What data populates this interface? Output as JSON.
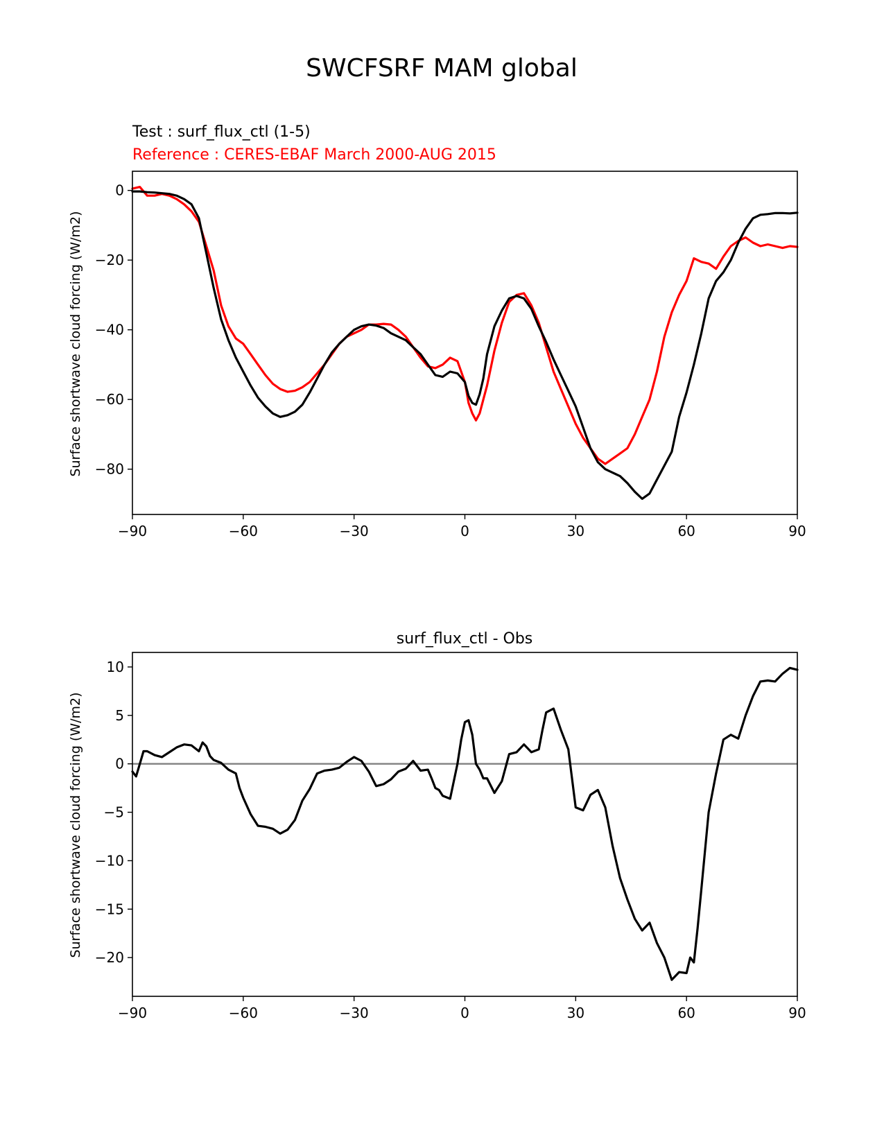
{
  "figure": {
    "title": "SWCFSRF MAM global"
  },
  "chart_data": [
    {
      "type": "line",
      "test_label": "Test : surf_flux_ctl (1-5)",
      "reference_label": "Reference : CERES-EBAF March 2000-AUG 2015",
      "xlabel": "",
      "ylabel": "Surface shortwave cloud forcing (W/m2)",
      "xlim": [
        -90,
        90
      ],
      "ylim": [
        -93,
        5.5
      ],
      "xticks": [
        -90,
        -60,
        -30,
        0,
        30,
        60,
        90
      ],
      "yticks": [
        0,
        -20,
        -40,
        -60,
        -80
      ],
      "grid": false,
      "series": [
        {
          "color": "#ff0000",
          "x": [
            -90,
            -88,
            -86,
            -84,
            -82,
            -80,
            -78,
            -76,
            -74,
            -72,
            -70,
            -68,
            -66,
            -64,
            -62,
            -60,
            -58,
            -56,
            -54,
            -52,
            -50,
            -48,
            -46,
            -44,
            -42,
            -40,
            -38,
            -36,
            -34,
            -32,
            -30,
            -28,
            -26,
            -24,
            -22,
            -20,
            -18,
            -16,
            -14,
            -12,
            -10,
            -8,
            -6,
            -4,
            -2,
            0,
            1,
            2,
            3,
            4,
            5,
            6,
            8,
            10,
            12,
            14,
            16,
            18,
            20,
            22,
            24,
            26,
            28,
            30,
            32,
            34,
            36,
            38,
            40,
            42,
            44,
            46,
            48,
            50,
            52,
            54,
            56,
            58,
            60,
            62,
            64,
            66,
            68,
            70,
            72,
            74,
            76,
            78,
            80,
            82,
            84,
            86,
            88,
            90
          ],
          "y": [
            0.5,
            1,
            -1.5,
            -1.5,
            -1,
            -1.5,
            -2.5,
            -4,
            -6,
            -9,
            -16,
            -23,
            -33,
            -39,
            -42.5,
            -44,
            -47,
            -50,
            -53,
            -55.5,
            -57,
            -57.8,
            -57.5,
            -56.5,
            -55,
            -52.5,
            -50,
            -47,
            -44,
            -42,
            -41,
            -40,
            -38.5,
            -38.5,
            -38.3,
            -38.5,
            -40,
            -42,
            -45,
            -48,
            -50.5,
            -51,
            -50,
            -48,
            -49,
            -55,
            -61,
            -64,
            -66,
            -64,
            -60,
            -56,
            -46,
            -38,
            -32,
            -30,
            -29.5,
            -33,
            -38,
            -45,
            -52,
            -57,
            -62,
            -67,
            -71,
            -74,
            -77,
            -78.5,
            -77,
            -75.5,
            -74,
            -70,
            -65,
            -60,
            -52,
            -42,
            -35,
            -30,
            -26,
            -19.5,
            -20.5,
            -21,
            -22.5,
            -19,
            -16,
            -14.5,
            -13.5,
            -15,
            -16,
            -15.5,
            -16,
            -16.5,
            -16,
            -16.2
          ]
        },
        {
          "color": "#000000",
          "x": [
            -90,
            -88,
            -86,
            -84,
            -82,
            -80,
            -78,
            -76,
            -74,
            -72,
            -70,
            -68,
            -66,
            -64,
            -62,
            -60,
            -58,
            -56,
            -54,
            -52,
            -50,
            -48,
            -46,
            -44,
            -42,
            -40,
            -38,
            -36,
            -34,
            -32,
            -30,
            -28,
            -26,
            -24,
            -22,
            -20,
            -18,
            -16,
            -14,
            -12,
            -10,
            -8,
            -6,
            -4,
            -2,
            0,
            1,
            2,
            3,
            4,
            5,
            6,
            8,
            10,
            12,
            14,
            16,
            18,
            20,
            22,
            24,
            26,
            28,
            30,
            32,
            34,
            36,
            38,
            40,
            42,
            44,
            46,
            48,
            50,
            52,
            54,
            56,
            58,
            60,
            62,
            64,
            66,
            68,
            70,
            72,
            74,
            76,
            78,
            80,
            82,
            84,
            86,
            88,
            90
          ],
          "y": [
            -0.3,
            -0.3,
            -0.5,
            -0.6,
            -0.8,
            -1,
            -1.5,
            -2.5,
            -4,
            -8,
            -18,
            -28,
            -37,
            -43,
            -48,
            -52,
            -56,
            -59.5,
            -62,
            -64,
            -65,
            -64.5,
            -63.5,
            -61.5,
            -58,
            -54,
            -50,
            -46.5,
            -44,
            -42,
            -40,
            -39,
            -38.5,
            -38.8,
            -39.5,
            -41,
            -42,
            -43,
            -45,
            -47,
            -50,
            -53,
            -53.5,
            -52,
            -52.5,
            -55,
            -59,
            -61,
            -61.5,
            -58.5,
            -54,
            -47,
            -39,
            -34.5,
            -31,
            -30.3,
            -31,
            -34,
            -39,
            -43.5,
            -48.5,
            -53,
            -57.5,
            -62,
            -68,
            -74,
            -78,
            -80,
            -81,
            -82,
            -84,
            -86.5,
            -88.5,
            -87,
            -83,
            -79,
            -75,
            -65,
            -58,
            -50,
            -41,
            -31,
            -26,
            -23.5,
            -20,
            -15,
            -11,
            -8,
            -7,
            -6.8,
            -6.5,
            -6.5,
            -6.6,
            -6.4
          ]
        }
      ]
    },
    {
      "type": "line",
      "title": "surf_flux_ctl - Obs",
      "xlabel": "",
      "ylabel": "Surface shortwave cloud forcing (W/m2)",
      "xlim": [
        -90,
        90
      ],
      "ylim": [
        -24,
        11.5
      ],
      "xticks": [
        -90,
        -60,
        -30,
        0,
        30,
        60,
        90
      ],
      "yticks": [
        10,
        5,
        0,
        -5,
        -10,
        -15,
        -20
      ],
      "grid": false,
      "zero_line": {
        "y": 0,
        "color": "#808080"
      },
      "series": [
        {
          "color": "#000000",
          "x": [
            -90,
            -89,
            -88,
            -87,
            -86,
            -84,
            -82,
            -80,
            -78,
            -76,
            -74,
            -72,
            -71,
            -70,
            -69,
            -68,
            -66,
            -64,
            -62,
            -61,
            -60,
            -58,
            -56,
            -54,
            -52,
            -50,
            -48,
            -46,
            -44,
            -42,
            -40,
            -38,
            -36,
            -34,
            -32,
            -30,
            -28,
            -26,
            -24,
            -22,
            -20,
            -18,
            -16,
            -14,
            -12,
            -10,
            -9,
            -8,
            -7,
            -6,
            -4,
            -2,
            -1,
            0,
            1,
            2,
            3,
            4,
            5,
            6,
            8,
            10,
            12,
            14,
            16,
            18,
            20,
            21,
            22,
            24,
            26,
            28,
            29,
            30,
            32,
            34,
            36,
            38,
            40,
            42,
            44,
            46,
            48,
            50,
            52,
            54,
            56,
            58,
            60,
            61,
            62,
            63,
            64,
            65,
            66,
            68,
            70,
            72,
            74,
            76,
            78,
            80,
            82,
            84,
            86,
            88,
            90
          ],
          "y": [
            -0.8,
            -1.3,
            0,
            1.3,
            1.3,
            0.9,
            0.7,
            1.2,
            1.7,
            2,
            1.9,
            1.3,
            2.2,
            1.8,
            0.8,
            0.4,
            0.1,
            -0.6,
            -1,
            -2.5,
            -3.5,
            -5.2,
            -6.4,
            -6.5,
            -6.7,
            -7.2,
            -6.8,
            -5.8,
            -3.8,
            -2.6,
            -1,
            -0.7,
            -0.6,
            -0.4,
            0.2,
            0.7,
            0.3,
            -0.8,
            -2.3,
            -2.1,
            -1.6,
            -0.8,
            -0.5,
            0.3,
            -0.7,
            -0.6,
            -1.5,
            -2.5,
            -2.7,
            -3.3,
            -3.6,
            0,
            2.5,
            4.3,
            4.5,
            3,
            0,
            -0.6,
            -1.5,
            -1.5,
            -3,
            -1.8,
            1,
            1.2,
            2,
            1.2,
            1.5,
            3.5,
            5.3,
            5.7,
            3.5,
            1.5,
            -1.5,
            -4.5,
            -4.8,
            -3.2,
            -2.7,
            -4.5,
            -8.5,
            -11.8,
            -14,
            -16,
            -17.2,
            -16.4,
            -18.5,
            -20,
            -22.3,
            -21.5,
            -21.6,
            -20,
            -20.5,
            -17,
            -13,
            -9,
            -5,
            -1,
            2.5,
            3,
            2.6,
            5,
            7,
            8.5,
            8.6,
            8.5,
            9.3,
            9.9,
            9.7
          ]
        }
      ]
    }
  ]
}
